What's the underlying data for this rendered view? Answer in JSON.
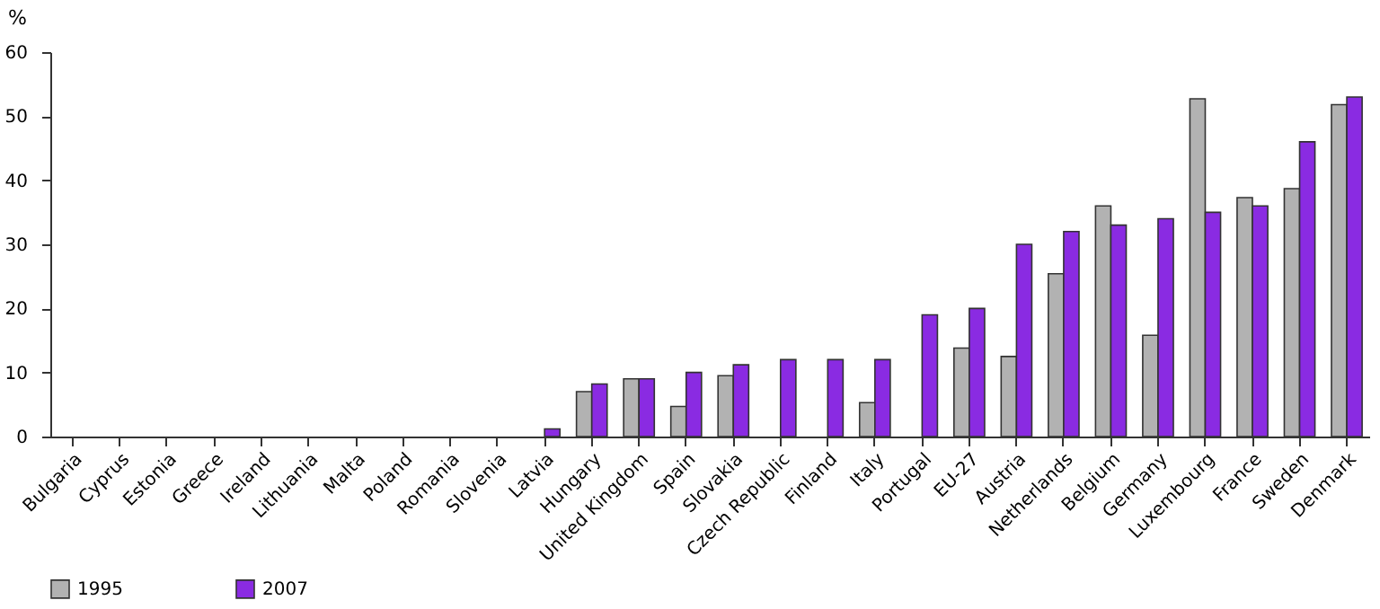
{
  "chart_data": {
    "type": "bar",
    "ylabel": "%",
    "categories": [
      "Bulgaria",
      "Cyprus",
      "Estonia",
      "Greece",
      "Ireland",
      "Lithuania",
      "Malta",
      "Poland",
      "Romania",
      "Slovenia",
      "Latvia",
      "Hungary",
      "United Kingdom",
      "Spain",
      "Slovakia",
      "Czech Republic",
      "Finland",
      "Italy",
      "Portugal",
      "EU-27",
      "Austria",
      "Netherlands",
      "Belgium",
      "Germany",
      "Luxembourg",
      "France",
      "Sweden",
      "Denmark"
    ],
    "series": [
      {
        "name": "1995",
        "color": "#b2b2b2",
        "values": [
          null,
          null,
          null,
          null,
          null,
          null,
          null,
          null,
          null,
          null,
          null,
          7,
          9,
          4.7,
          9.5,
          null,
          null,
          5.3,
          null,
          13.8,
          12.5,
          25.4,
          36,
          15.8,
          52.7,
          37.3,
          38.7,
          51.8
        ]
      },
      {
        "name": "2007",
        "color": "#8a2be2",
        "values": [
          null,
          null,
          null,
          null,
          null,
          null,
          null,
          null,
          null,
          null,
          1.2,
          8.2,
          9,
          10,
          11.2,
          12,
          12,
          12,
          19,
          20,
          30,
          32,
          33,
          34,
          35,
          36,
          46,
          53
        ]
      }
    ],
    "ylim": [
      0,
      60
    ],
    "yticks": [
      0,
      10,
      20,
      30,
      40,
      50,
      60
    ],
    "grid": false,
    "legend": "bottom left"
  }
}
